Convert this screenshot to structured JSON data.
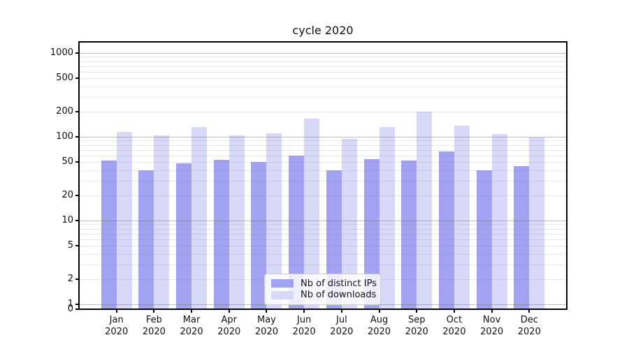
{
  "chart_data": {
    "type": "bar",
    "title": "cycle 2020",
    "x_months": [
      "Jan",
      "Feb",
      "Mar",
      "Apr",
      "May",
      "Jun",
      "Jul",
      "Aug",
      "Sep",
      "Oct",
      "Nov",
      "Dec"
    ],
    "x_year": "2020",
    "series": [
      {
        "name": "Nb of distinct IPs",
        "color": "#a2a2f2",
        "values": [
          52,
          40,
          48,
          53,
          50,
          60,
          40,
          54,
          52,
          67,
          40,
          45
        ]
      },
      {
        "name": "Nb of downloads",
        "color": "#d8d8f8",
        "values": [
          115,
          103,
          130,
          104,
          110,
          165,
          94,
          130,
          200,
          135,
          108,
          99
        ]
      }
    ],
    "y_scale": "symlog (log above 1, linear 0-1)",
    "y_tick_labels": [
      "1000",
      "500",
      "200",
      "100",
      "50",
      "20",
      "10",
      "5",
      "2",
      "1",
      "0"
    ],
    "y_tick_values": [
      1000,
      500,
      200,
      100,
      50,
      20,
      10,
      5,
      2,
      1,
      0
    ],
    "ylim": [
      0,
      1360
    ],
    "grid": "horizontal major and minor gridlines, drawn over bars",
    "legend_position": "inside plot, lower center",
    "axis_color": "#000000",
    "major_grid_color": "#b7b7b7",
    "minor_grid_color": "#e2e2e2"
  }
}
